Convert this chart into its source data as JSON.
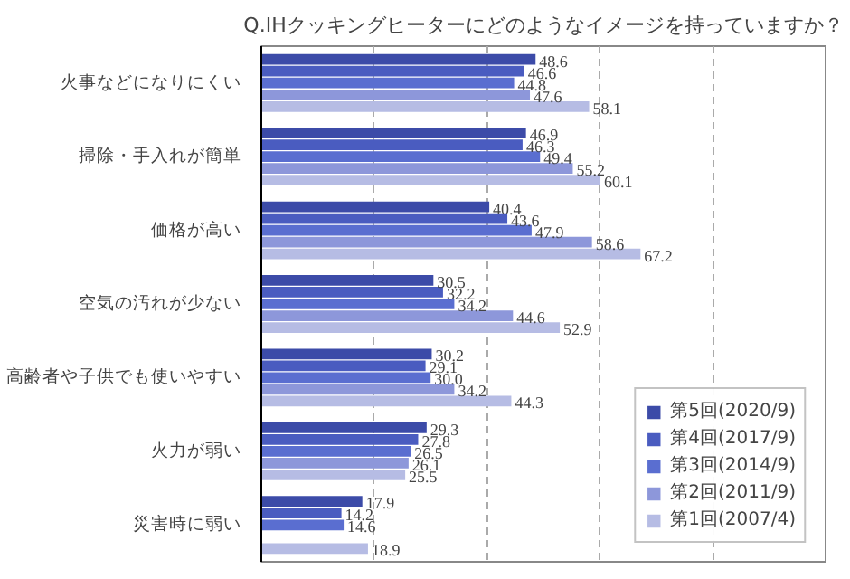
{
  "chart_data": {
    "type": "bar",
    "orientation": "horizontal",
    "title": "Q.IHクッキングヒーターにどのようなイメージを持っていますか？",
    "categories": [
      "火事などになりにくい",
      "掃除・手入れが簡単",
      "価格が高い",
      "空気の汚れが少ない",
      "高齢者や子供でも使いやすい",
      "火力が弱い",
      "災害時に弱い"
    ],
    "series": [
      {
        "name": "第5回(2020/9)",
        "color": "#3c4ba8",
        "values": [
          48.6,
          46.9,
          40.4,
          30.5,
          30.2,
          29.3,
          17.9
        ]
      },
      {
        "name": "第4回(2017/9)",
        "color": "#4a5cc0",
        "values": [
          46.6,
          46.3,
          43.6,
          32.2,
          29.1,
          27.8,
          14.2
        ]
      },
      {
        "name": "第3回(2014/9)",
        "color": "#5a6ed0",
        "values": [
          44.8,
          49.4,
          47.9,
          34.2,
          30.0,
          26.5,
          14.6
        ],
        "value_labels": [
          "44.8",
          "49.4",
          "47.9",
          "34.2",
          "30.0",
          "26.5",
          "14.6"
        ]
      },
      {
        "name": "第2回(2011/9)",
        "color": "#8d97da",
        "values": [
          47.6,
          55.2,
          58.6,
          44.6,
          34.2,
          26.1,
          null
        ]
      },
      {
        "name": "第1回(2007/4)",
        "color": "#b6bce4",
        "values": [
          58.1,
          60.1,
          67.2,
          52.9,
          44.3,
          25.5,
          18.9
        ]
      }
    ],
    "xlim": [
      0,
      100
    ],
    "xticks": [
      {
        "value": 20,
        "label": null
      },
      {
        "value": 40,
        "label": null
      },
      {
        "value": 60,
        "label": null
      },
      {
        "value": 80,
        "label": null
      }
    ],
    "tick_labels": "y",
    "grid": "x",
    "data_labels": true,
    "legend": "bottom right"
  }
}
